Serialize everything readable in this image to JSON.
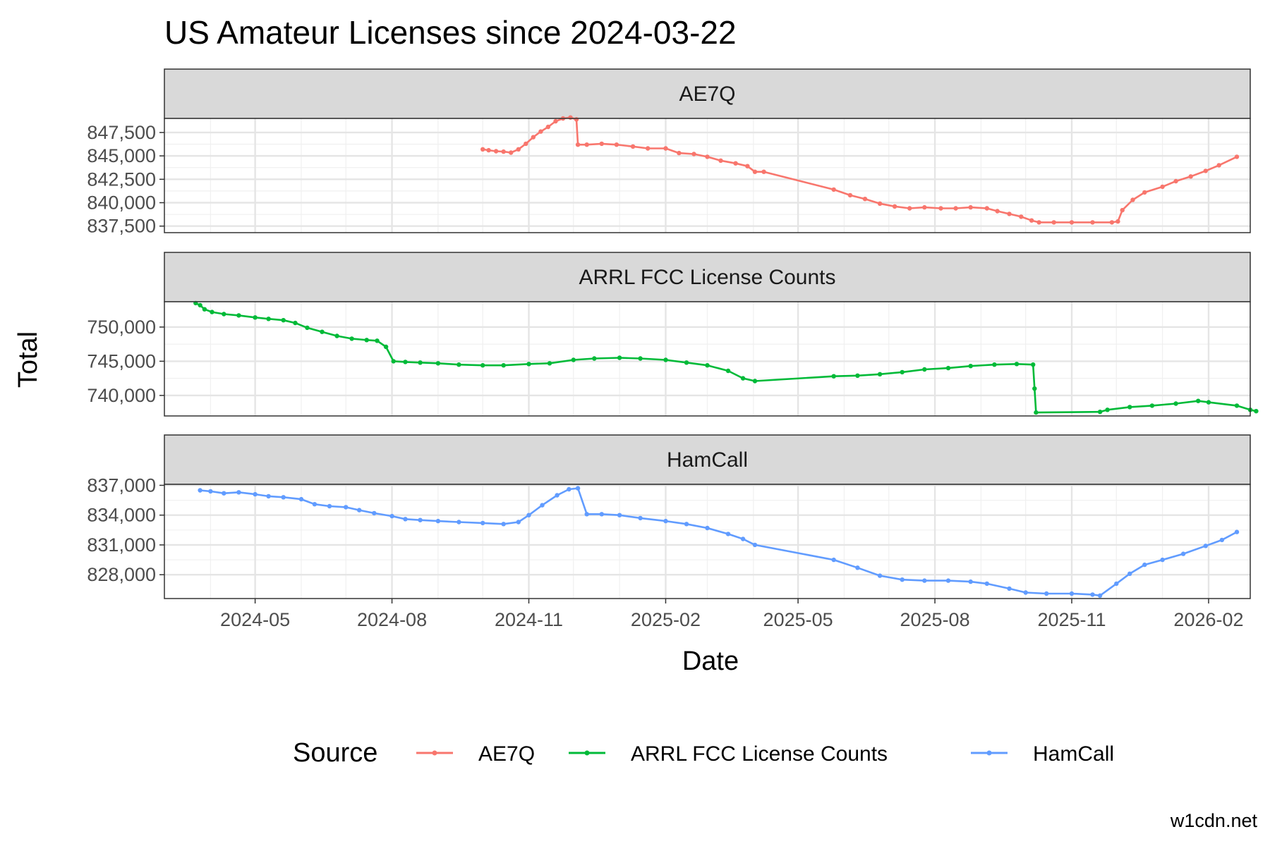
{
  "chart_data": {
    "type": "line",
    "title": "US Amateur Licenses since 2024-03-22",
    "xlabel": "Date",
    "ylabel": "Total",
    "caption": "w1cdn.net",
    "legend": {
      "title": "Source",
      "position": "bottom"
    },
    "x_ticks": [
      "2024-05",
      "2024-08",
      "2024-11",
      "2025-02",
      "2025-05",
      "2025-08",
      "2025-11",
      "2026-02"
    ],
    "xlim": [
      "2024-03-01",
      "2026-03-01"
    ],
    "panels": [
      {
        "strip": "AE7Q",
        "series": "AE7Q",
        "color": "#F8766D",
        "ylim": [
          836800,
          849000
        ],
        "y_ticks": [
          837500,
          840000,
          842500,
          845000,
          847500
        ],
        "y_tick_labels": [
          "837,500",
          "840,000",
          "842,500",
          "845,000",
          "847,500"
        ],
        "points": [
          [
            "2024-10-01",
            845700
          ],
          [
            "2024-10-05",
            845600
          ],
          [
            "2024-10-10",
            845500
          ],
          [
            "2024-10-15",
            845450
          ],
          [
            "2024-10-20",
            845350
          ],
          [
            "2024-10-25",
            845700
          ],
          [
            "2024-10-30",
            846300
          ],
          [
            "2024-11-04",
            847000
          ],
          [
            "2024-11-09",
            847600
          ],
          [
            "2024-11-14",
            848100
          ],
          [
            "2024-11-19",
            848700
          ],
          [
            "2024-11-24",
            849000
          ],
          [
            "2024-11-29",
            849100
          ],
          [
            "2024-12-03",
            848900
          ],
          [
            "2024-12-04",
            846200
          ],
          [
            "2024-12-10",
            846200
          ],
          [
            "2024-12-20",
            846300
          ],
          [
            "2024-12-30",
            846200
          ],
          [
            "2025-01-10",
            846000
          ],
          [
            "2025-01-20",
            845800
          ],
          [
            "2025-02-01",
            845800
          ],
          [
            "2025-02-10",
            845300
          ],
          [
            "2025-02-20",
            845200
          ],
          [
            "2025-03-01",
            844900
          ],
          [
            "2025-03-10",
            844500
          ],
          [
            "2025-03-20",
            844200
          ],
          [
            "2025-03-28",
            843900
          ],
          [
            "2025-04-02",
            843300
          ],
          [
            "2025-04-08",
            843300
          ],
          [
            "2025-05-25",
            841400
          ],
          [
            "2025-06-05",
            840800
          ],
          [
            "2025-06-15",
            840400
          ],
          [
            "2025-06-25",
            839900
          ],
          [
            "2025-07-05",
            839600
          ],
          [
            "2025-07-15",
            839400
          ],
          [
            "2025-07-25",
            839500
          ],
          [
            "2025-08-05",
            839400
          ],
          [
            "2025-08-15",
            839400
          ],
          [
            "2025-08-25",
            839500
          ],
          [
            "2025-09-05",
            839400
          ],
          [
            "2025-09-12",
            839100
          ],
          [
            "2025-09-20",
            838800
          ],
          [
            "2025-09-28",
            838500
          ],
          [
            "2025-10-05",
            838100
          ],
          [
            "2025-10-10",
            837900
          ],
          [
            "2025-10-20",
            837900
          ],
          [
            "2025-11-01",
            837900
          ],
          [
            "2025-11-15",
            837900
          ],
          [
            "2025-11-28",
            837900
          ],
          [
            "2025-12-02",
            838000
          ],
          [
            "2025-12-05",
            839200
          ],
          [
            "2025-12-12",
            840300
          ],
          [
            "2025-12-20",
            841100
          ],
          [
            "2026-01-01",
            841700
          ],
          [
            "2026-01-10",
            842300
          ],
          [
            "2026-01-20",
            842800
          ],
          [
            "2026-01-30",
            843400
          ],
          [
            "2026-02-08",
            844000
          ],
          [
            "2026-02-20",
            844900
          ]
        ]
      },
      {
        "strip": "ARRL FCC License Counts",
        "series": "ARRL FCC License Counts",
        "color": "#00BA38",
        "ylim": [
          737000,
          753700
        ],
        "y_ticks": [
          740000,
          745000,
          750000
        ],
        "y_tick_labels": [
          "740,000",
          "745,000",
          "750,000"
        ],
        "points": [
          [
            "2024-03-22",
            753500
          ],
          [
            "2024-03-25",
            753200
          ],
          [
            "2024-03-28",
            752600
          ],
          [
            "2024-04-02",
            752200
          ],
          [
            "2024-04-10",
            751900
          ],
          [
            "2024-04-20",
            751700
          ],
          [
            "2024-05-01",
            751400
          ],
          [
            "2024-05-10",
            751200
          ],
          [
            "2024-05-20",
            751000
          ],
          [
            "2024-05-28",
            750600
          ],
          [
            "2024-06-05",
            749900
          ],
          [
            "2024-06-15",
            749300
          ],
          [
            "2024-06-25",
            748700
          ],
          [
            "2024-07-05",
            748300
          ],
          [
            "2024-07-15",
            748100
          ],
          [
            "2024-07-22",
            748000
          ],
          [
            "2024-07-28",
            747100
          ],
          [
            "2024-08-02",
            745000
          ],
          [
            "2024-08-10",
            744900
          ],
          [
            "2024-08-20",
            744800
          ],
          [
            "2024-09-01",
            744700
          ],
          [
            "2024-09-15",
            744500
          ],
          [
            "2024-10-01",
            744400
          ],
          [
            "2024-10-15",
            744400
          ],
          [
            "2024-11-01",
            744600
          ],
          [
            "2024-11-15",
            744700
          ],
          [
            "2024-12-01",
            745200
          ],
          [
            "2024-12-15",
            745400
          ],
          [
            "2025-01-01",
            745500
          ],
          [
            "2025-01-15",
            745400
          ],
          [
            "2025-02-01",
            745200
          ],
          [
            "2025-02-15",
            744800
          ],
          [
            "2025-03-01",
            744400
          ],
          [
            "2025-03-15",
            743600
          ],
          [
            "2025-03-25",
            742500
          ],
          [
            "2025-04-02",
            742100
          ],
          [
            "2025-05-25",
            742800
          ],
          [
            "2025-06-10",
            742900
          ],
          [
            "2025-06-25",
            743100
          ],
          [
            "2025-07-10",
            743400
          ],
          [
            "2025-07-25",
            743800
          ],
          [
            "2025-08-10",
            744000
          ],
          [
            "2025-08-25",
            744300
          ],
          [
            "2025-09-10",
            744500
          ],
          [
            "2025-09-25",
            744600
          ],
          [
            "2025-10-06",
            744500
          ],
          [
            "2025-10-07",
            741000
          ],
          [
            "2025-10-08",
            737500
          ],
          [
            "2025-11-20",
            737600
          ],
          [
            "2025-11-25",
            737900
          ],
          [
            "2025-12-10",
            738300
          ],
          [
            "2025-12-25",
            738500
          ],
          [
            "2026-01-10",
            738800
          ],
          [
            "2026-01-25",
            739200
          ],
          [
            "2026-02-01",
            739000
          ],
          [
            "2026-02-20",
            738500
          ],
          [
            "2026-03-01",
            737900
          ],
          [
            "2026-03-05",
            737700
          ]
        ]
      },
      {
        "strip": "HamCall",
        "series": "HamCall",
        "color": "#619CFF",
        "ylim": [
          825600,
          837100
        ],
        "y_ticks": [
          828000,
          831000,
          834000,
          837000
        ],
        "y_tick_labels": [
          "828,000",
          "831,000",
          "834,000",
          "837,000"
        ],
        "points": [
          [
            "2024-03-25",
            836500
          ],
          [
            "2024-04-01",
            836400
          ],
          [
            "2024-04-10",
            836200
          ],
          [
            "2024-04-20",
            836300
          ],
          [
            "2024-05-01",
            836100
          ],
          [
            "2024-05-10",
            835900
          ],
          [
            "2024-05-20",
            835800
          ],
          [
            "2024-06-01",
            835600
          ],
          [
            "2024-06-10",
            835100
          ],
          [
            "2024-06-20",
            834900
          ],
          [
            "2024-07-01",
            834800
          ],
          [
            "2024-07-10",
            834500
          ],
          [
            "2024-07-20",
            834200
          ],
          [
            "2024-08-01",
            833900
          ],
          [
            "2024-08-10",
            833600
          ],
          [
            "2024-08-20",
            833500
          ],
          [
            "2024-09-01",
            833400
          ],
          [
            "2024-09-15",
            833300
          ],
          [
            "2024-10-01",
            833200
          ],
          [
            "2024-10-15",
            833100
          ],
          [
            "2024-10-25",
            833300
          ],
          [
            "2024-11-01",
            834000
          ],
          [
            "2024-11-10",
            835000
          ],
          [
            "2024-11-20",
            836000
          ],
          [
            "2024-11-28",
            836600
          ],
          [
            "2024-12-04",
            836700
          ],
          [
            "2024-12-10",
            834100
          ],
          [
            "2024-12-20",
            834100
          ],
          [
            "2025-01-01",
            834000
          ],
          [
            "2025-01-15",
            833700
          ],
          [
            "2025-02-01",
            833400
          ],
          [
            "2025-02-15",
            833100
          ],
          [
            "2025-03-01",
            832700
          ],
          [
            "2025-03-15",
            832100
          ],
          [
            "2025-03-25",
            831600
          ],
          [
            "2025-04-02",
            831000
          ],
          [
            "2025-05-25",
            829500
          ],
          [
            "2025-06-10",
            828700
          ],
          [
            "2025-06-25",
            827900
          ],
          [
            "2025-07-10",
            827500
          ],
          [
            "2025-07-25",
            827400
          ],
          [
            "2025-08-10",
            827400
          ],
          [
            "2025-08-25",
            827300
          ],
          [
            "2025-09-05",
            827100
          ],
          [
            "2025-09-20",
            826600
          ],
          [
            "2025-10-01",
            826200
          ],
          [
            "2025-10-15",
            826100
          ],
          [
            "2025-11-01",
            826100
          ],
          [
            "2025-11-15",
            826000
          ],
          [
            "2025-11-20",
            825900
          ],
          [
            "2025-12-01",
            827100
          ],
          [
            "2025-12-10",
            828100
          ],
          [
            "2025-12-20",
            829000
          ],
          [
            "2026-01-01",
            829500
          ],
          [
            "2026-01-15",
            830100
          ],
          [
            "2026-01-30",
            830900
          ],
          [
            "2026-02-10",
            831500
          ],
          [
            "2026-02-20",
            832300
          ]
        ]
      }
    ]
  }
}
